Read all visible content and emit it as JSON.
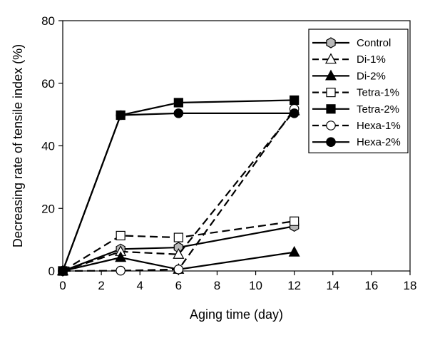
{
  "chart_data": {
    "type": "line",
    "title": "",
    "xlabel": "Aging time (day)",
    "ylabel": "Decreasing rate of tensile index (%)",
    "xlim": [
      0,
      18
    ],
    "ylim": [
      0,
      80
    ],
    "xticks": [
      "0",
      "2",
      "4",
      "6",
      "8",
      "10",
      "12",
      "14",
      "16",
      "18"
    ],
    "yticks": [
      "0",
      "20",
      "40",
      "60",
      "80"
    ],
    "grid": false,
    "legend_position": "top-right",
    "x": [
      0,
      3,
      6,
      12
    ],
    "series": [
      {
        "name": "Control",
        "values": [
          0,
          7.0,
          7.5,
          14.3
        ],
        "marker": "hexagon",
        "fill": "#b8b8b8",
        "dash": "solid"
      },
      {
        "name": "Di-1%",
        "values": [
          0,
          6.2,
          5.3,
          51.2
        ],
        "marker": "triangle",
        "fill": "#ffffff",
        "dash": "dashed"
      },
      {
        "name": "Di-2%",
        "values": [
          0,
          4.3,
          0.5,
          6.0
        ],
        "marker": "triangle",
        "fill": "#000000",
        "dash": "solid"
      },
      {
        "name": "Tetra-1%",
        "values": [
          0,
          11.3,
          10.7,
          15.9
        ],
        "marker": "square",
        "fill": "#ffffff",
        "dash": "dashed"
      },
      {
        "name": "Tetra-2%",
        "values": [
          0,
          49.8,
          53.8,
          54.6
        ],
        "marker": "square",
        "fill": "#000000",
        "dash": "solid"
      },
      {
        "name": "Hexa-1%",
        "values": [
          0,
          0.1,
          0.5,
          51.8
        ],
        "marker": "circle",
        "fill": "#ffffff",
        "dash": "dashed"
      },
      {
        "name": "Hexa-2%",
        "values": [
          0,
          49.8,
          50.4,
          50.4
        ],
        "marker": "circle",
        "fill": "#000000",
        "dash": "solid"
      }
    ]
  }
}
